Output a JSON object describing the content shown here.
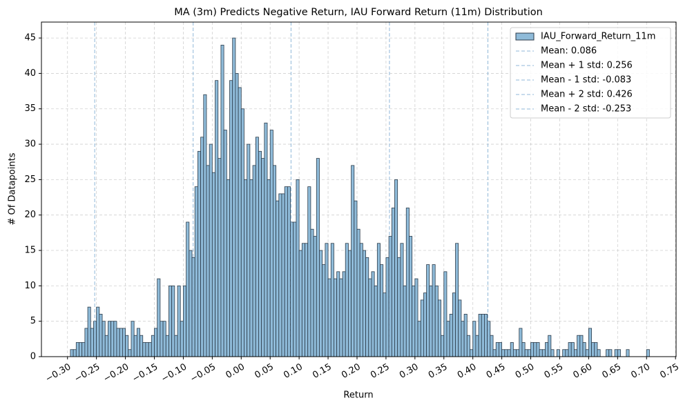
{
  "chart_data": {
    "type": "histogram",
    "title": "MA (3m) Predicts Negative Return, IAU Forward Return (11m) Distribution",
    "xlabel": "Return",
    "ylabel": "# Of Datapoints",
    "series": [
      {
        "name": "IAU_Forward_Return_11m",
        "color": "#8fbbd9",
        "edgecolor": "#2b3a48",
        "bins": [
          -0.295,
          -0.29,
          -0.285,
          -0.28,
          -0.275,
          -0.27,
          -0.265,
          -0.26,
          -0.255,
          -0.25,
          -0.245,
          -0.24,
          -0.235,
          -0.23,
          -0.225,
          -0.22,
          -0.215,
          -0.21,
          -0.205,
          -0.2,
          -0.195,
          -0.19,
          -0.185,
          -0.18,
          -0.175,
          -0.17,
          -0.165,
          -0.16,
          -0.155,
          -0.15,
          -0.145,
          -0.14,
          -0.135,
          -0.13,
          -0.125,
          -0.12,
          -0.115,
          -0.11,
          -0.105,
          -0.1,
          -0.095,
          -0.09,
          -0.085,
          -0.08,
          -0.075,
          -0.07,
          -0.065,
          -0.06,
          -0.055,
          -0.05,
          -0.045,
          -0.04,
          -0.035,
          -0.03,
          -0.025,
          -0.02,
          -0.015,
          -0.01,
          -0.005,
          0,
          0.005,
          0.01,
          0.015,
          0.02,
          0.025,
          0.03,
          0.035,
          0.04,
          0.045,
          0.05,
          0.055,
          0.06,
          0.065,
          0.07,
          0.075,
          0.08,
          0.085,
          0.09,
          0.095,
          0.1,
          0.105,
          0.11,
          0.115,
          0.12,
          0.125,
          0.13,
          0.135,
          0.14,
          0.145,
          0.15,
          0.155,
          0.16,
          0.165,
          0.17,
          0.175,
          0.18,
          0.185,
          0.19,
          0.195,
          0.2,
          0.205,
          0.21,
          0.215,
          0.22,
          0.225,
          0.23,
          0.235,
          0.24,
          0.245,
          0.25,
          0.255,
          0.26,
          0.265,
          0.27,
          0.275,
          0.28,
          0.285,
          0.29,
          0.295,
          0.3,
          0.305,
          0.31,
          0.315,
          0.32,
          0.325,
          0.33,
          0.335,
          0.34,
          0.345,
          0.35,
          0.355,
          0.36,
          0.365,
          0.37,
          0.375,
          0.38,
          0.385,
          0.39,
          0.395,
          0.4,
          0.405,
          0.41,
          0.415,
          0.42,
          0.425,
          0.43,
          0.435,
          0.44,
          0.445,
          0.45,
          0.455,
          0.46,
          0.465,
          0.47,
          0.475,
          0.48,
          0.485,
          0.49,
          0.495,
          0.5,
          0.505,
          0.51,
          0.515,
          0.52,
          0.525,
          0.53,
          0.535,
          0.54,
          0.545,
          0.55,
          0.555,
          0.56,
          0.565,
          0.57,
          0.575,
          0.58,
          0.585,
          0.59,
          0.595,
          0.6,
          0.605,
          0.61,
          0.615,
          0.62,
          0.625,
          0.63,
          0.635,
          0.64,
          0.645,
          0.65,
          0.655,
          0.66,
          0.665,
          0.67,
          0.675,
          0.68,
          0.685,
          0.69,
          0.695,
          0.7,
          0.705
        ],
        "values": [
          1,
          1,
          2,
          2,
          2,
          4,
          7,
          4,
          5,
          7,
          6,
          5,
          3,
          5,
          5,
          5,
          4,
          4,
          4,
          3,
          1,
          5,
          3,
          4,
          3,
          2,
          2,
          2,
          3,
          4,
          11,
          5,
          5,
          3,
          10,
          10,
          3,
          10,
          5,
          10,
          19,
          15,
          14,
          24,
          29,
          31,
          37,
          27,
          30,
          26,
          39,
          28,
          44,
          32,
          25,
          39,
          45,
          40,
          38,
          35,
          25,
          30,
          25,
          27,
          31,
          29,
          28,
          33,
          25,
          32,
          27,
          22,
          23,
          23,
          24,
          24,
          19,
          19,
          25,
          15,
          16,
          16,
          24,
          18,
          17,
          28,
          15,
          13,
          16,
          11,
          16,
          11,
          12,
          11,
          12,
          16,
          15,
          27,
          22,
          18,
          16,
          15,
          14,
          11,
          12,
          10,
          16,
          13,
          9,
          14,
          17,
          21,
          25,
          14,
          16,
          10,
          21,
          17,
          10,
          11,
          5,
          8,
          9,
          13,
          10,
          13,
          10,
          8,
          3,
          12,
          5,
          6,
          9,
          16,
          8,
          5,
          6,
          3,
          1,
          5,
          3,
          6,
          6,
          6,
          5,
          3,
          1,
          2,
          2,
          1,
          1,
          1,
          2,
          1,
          1,
          4,
          2,
          1,
          1,
          2,
          2,
          2,
          1,
          1,
          2,
          3,
          1,
          0,
          1,
          0,
          1,
          1,
          2,
          2,
          1,
          3,
          3,
          2,
          1,
          4,
          2,
          2,
          1,
          0,
          0,
          1,
          1,
          0,
          1,
          1,
          0,
          0,
          1,
          0,
          0,
          0,
          0,
          0,
          0,
          1
        ]
      }
    ],
    "vlines": [
      {
        "label": "Mean: 0.086",
        "value": 0.086
      },
      {
        "label": "Mean + 1 std: 0.256",
        "value": 0.256
      },
      {
        "label": "Mean - 1 std: -0.083",
        "value": -0.083
      },
      {
        "label": "Mean + 2 std: 0.426",
        "value": 0.426
      },
      {
        "label": "Mean - 2 std: -0.253",
        "value": -0.253
      }
    ],
    "vline_color": "#8fb7d8",
    "xlim": [
      -0.345,
      0.751
    ],
    "ylim": [
      0,
      47.25
    ],
    "xticks": [
      {
        "value": -0.3,
        "label": "−0.30"
      },
      {
        "value": -0.25,
        "label": "−0.25"
      },
      {
        "value": -0.2,
        "label": "−0.20"
      },
      {
        "value": -0.15,
        "label": "−0.15"
      },
      {
        "value": -0.1,
        "label": "−0.10"
      },
      {
        "value": -0.05,
        "label": "−0.05"
      },
      {
        "value": 0,
        "label": "0.00"
      },
      {
        "value": 0.05,
        "label": "0.05"
      },
      {
        "value": 0.1,
        "label": "0.10"
      },
      {
        "value": 0.15,
        "label": "0.15"
      },
      {
        "value": 0.2,
        "label": "0.20"
      },
      {
        "value": 0.25,
        "label": "0.25"
      },
      {
        "value": 0.3,
        "label": "0.30"
      },
      {
        "value": 0.35,
        "label": "0.35"
      },
      {
        "value": 0.4,
        "label": "0.40"
      },
      {
        "value": 0.45,
        "label": "0.45"
      },
      {
        "value": 0.5,
        "label": "0.50"
      },
      {
        "value": 0.55,
        "label": "0.55"
      },
      {
        "value": 0.6,
        "label": "0.60"
      },
      {
        "value": 0.65,
        "label": "0.65"
      },
      {
        "value": 0.7,
        "label": "0.70"
      },
      {
        "value": 0.75,
        "label": "0.75"
      }
    ],
    "yticks": [
      0,
      5,
      10,
      15,
      20,
      25,
      30,
      35,
      40,
      45
    ],
    "grid": true,
    "legend": "upper right"
  }
}
